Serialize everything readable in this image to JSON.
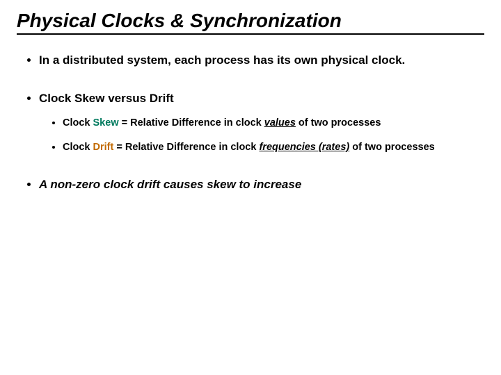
{
  "title": "Physical Clocks & Synchronization",
  "bullets": {
    "b1": "In a distributed system, each process has its own physical clock.",
    "b2": "Clock Skew versus Drift",
    "b2a_pre": "Clock ",
    "b2a_skew": "Skew",
    "b2a_mid": " = Relative Difference in clock ",
    "b2a_ital": "values",
    "b2a_post": " of two processes",
    "b2b_pre": "Clock ",
    "b2b_drift": "Drift",
    "b2b_mid": " = Relative Difference in clock ",
    "b2b_ital": "frequencies (rates)",
    "b2b_post": " of two processes",
    "b3": "A non-zero clock drift causes skew to increase"
  },
  "colors": {
    "skew": "#007a5e",
    "drift": "#c26a00",
    "text": "#000000",
    "background": "#ffffff"
  }
}
